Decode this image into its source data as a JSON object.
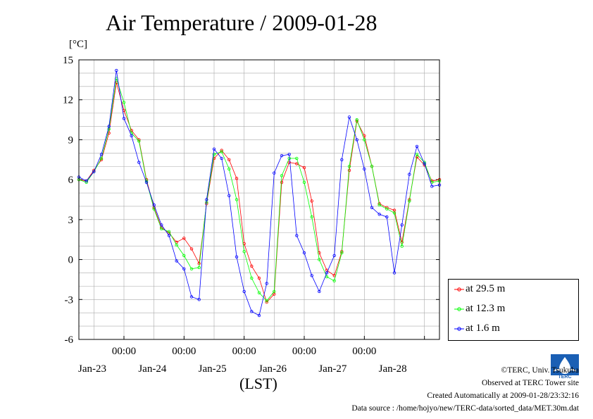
{
  "chart_data": {
    "type": "line",
    "title": "Air Temperature / 2009-01-28",
    "ylabel": "[°C]",
    "xlabel": "(LST)",
    "ylim": [
      -6,
      15
    ],
    "yticks": [
      -6,
      -3,
      0,
      3,
      6,
      9,
      12,
      15
    ],
    "xlim": [
      "2009-01-22 06:00",
      "2009-01-28 06:00"
    ],
    "xticks": [
      {
        "time": "2009-01-23 00:00",
        "top": "00:00",
        "bottom": "Jan-23"
      },
      {
        "time": "2009-01-24 00:00",
        "top": "00:00",
        "bottom": "Jan-24"
      },
      {
        "time": "2009-01-25 00:00",
        "top": "00:00",
        "bottom": "Jan-25"
      },
      {
        "time": "2009-01-26 00:00",
        "top": "00:00",
        "bottom": "Jan-26"
      },
      {
        "time": "2009-01-27 00:00",
        "top": "00:00",
        "bottom": "Jan-27"
      },
      {
        "time": "2009-01-28 00:00",
        "top": "",
        "bottom": "Jan-28"
      }
    ],
    "grid": true,
    "legend_position": "right",
    "x_times": [
      "2009-01-22 06:00",
      "2009-01-22 09:00",
      "2009-01-22 12:00",
      "2009-01-22 15:00",
      "2009-01-22 18:00",
      "2009-01-22 21:00",
      "2009-01-23 00:00",
      "2009-01-23 03:00",
      "2009-01-23 06:00",
      "2009-01-23 09:00",
      "2009-01-23 12:00",
      "2009-01-23 15:00",
      "2009-01-23 18:00",
      "2009-01-23 21:00",
      "2009-01-24 00:00",
      "2009-01-24 03:00",
      "2009-01-24 06:00",
      "2009-01-24 09:00",
      "2009-01-24 12:00",
      "2009-01-24 15:00",
      "2009-01-24 18:00",
      "2009-01-24 21:00",
      "2009-01-25 00:00",
      "2009-01-25 03:00",
      "2009-01-25 06:00",
      "2009-01-25 09:00",
      "2009-01-25 12:00",
      "2009-01-25 15:00",
      "2009-01-25 18:00",
      "2009-01-25 21:00",
      "2009-01-26 00:00",
      "2009-01-26 03:00",
      "2009-01-26 06:00",
      "2009-01-26 09:00",
      "2009-01-26 12:00",
      "2009-01-26 15:00",
      "2009-01-26 18:00",
      "2009-01-26 21:00",
      "2009-01-27 00:00",
      "2009-01-27 03:00",
      "2009-01-27 06:00",
      "2009-01-27 09:00",
      "2009-01-27 12:00",
      "2009-01-27 15:00",
      "2009-01-27 18:00",
      "2009-01-27 21:00",
      "2009-01-28 00:00",
      "2009-01-28 03:00",
      "2009-01-28 06:00"
    ],
    "series": [
      {
        "name": "at 29.5 m",
        "color": "#ff0000",
        "values": [
          6.0,
          5.9,
          6.7,
          7.5,
          9.5,
          13.3,
          11.2,
          9.7,
          9.0,
          6.0,
          3.9,
          2.4,
          2.0,
          1.3,
          1.6,
          0.8,
          -0.3,
          4.2,
          7.6,
          8.2,
          7.5,
          6.1,
          1.2,
          -0.5,
          -1.4,
          -3.2,
          -2.6,
          5.8,
          7.3,
          7.2,
          6.9,
          4.4,
          0.5,
          -0.8,
          -1.2,
          0.6,
          6.7,
          10.4,
          9.3,
          7.0,
          4.2,
          3.9,
          3.7,
          1.3,
          4.5,
          7.7,
          7.1,
          5.9,
          6.0
        ]
      },
      {
        "name": "at 12.3 m",
        "color": "#00ff00",
        "values": [
          6.0,
          5.8,
          6.6,
          7.6,
          9.8,
          13.6,
          11.8,
          9.5,
          8.9,
          5.9,
          3.8,
          2.3,
          2.1,
          1.1,
          0.3,
          -0.7,
          -0.6,
          4.3,
          7.9,
          8.1,
          6.8,
          4.5,
          0.6,
          -1.4,
          -2.5,
          -3.1,
          -2.4,
          6.3,
          7.6,
          7.6,
          5.8,
          3.2,
          0.0,
          -1.3,
          -1.6,
          0.5,
          7.0,
          10.5,
          9.0,
          7.0,
          4.1,
          3.8,
          3.5,
          1.0,
          4.4,
          7.9,
          7.3,
          5.8,
          5.9
        ]
      },
      {
        "name": "at 1.6 m",
        "color": "#0000ff",
        "values": [
          6.2,
          5.9,
          6.6,
          7.9,
          10.0,
          14.2,
          10.6,
          9.3,
          7.3,
          5.8,
          4.1,
          2.6,
          1.8,
          -0.1,
          -0.7,
          -2.8,
          -3.0,
          4.5,
          8.3,
          7.6,
          4.8,
          0.2,
          -2.4,
          -3.9,
          -4.2,
          -1.8,
          6.5,
          7.8,
          7.9,
          1.8,
          0.5,
          -1.2,
          -2.4,
          -1.0,
          0.3,
          7.5,
          10.7,
          9.0,
          6.8,
          3.9,
          3.4,
          3.2,
          -1.0,
          2.6,
          6.4,
          8.5,
          7.2,
          5.5,
          5.6
        ]
      }
    ]
  },
  "footer": {
    "credit": "©TERC, Univ. Tsukuba",
    "observed": "Observed at TERC Tower site",
    "created": "Created Automatically at 2009-01-28/23:32:16",
    "source": "Data source : /home/hojyo/new/TERC-data/sorted_data/MET.30m.dat",
    "logo_text": "TERC"
  }
}
